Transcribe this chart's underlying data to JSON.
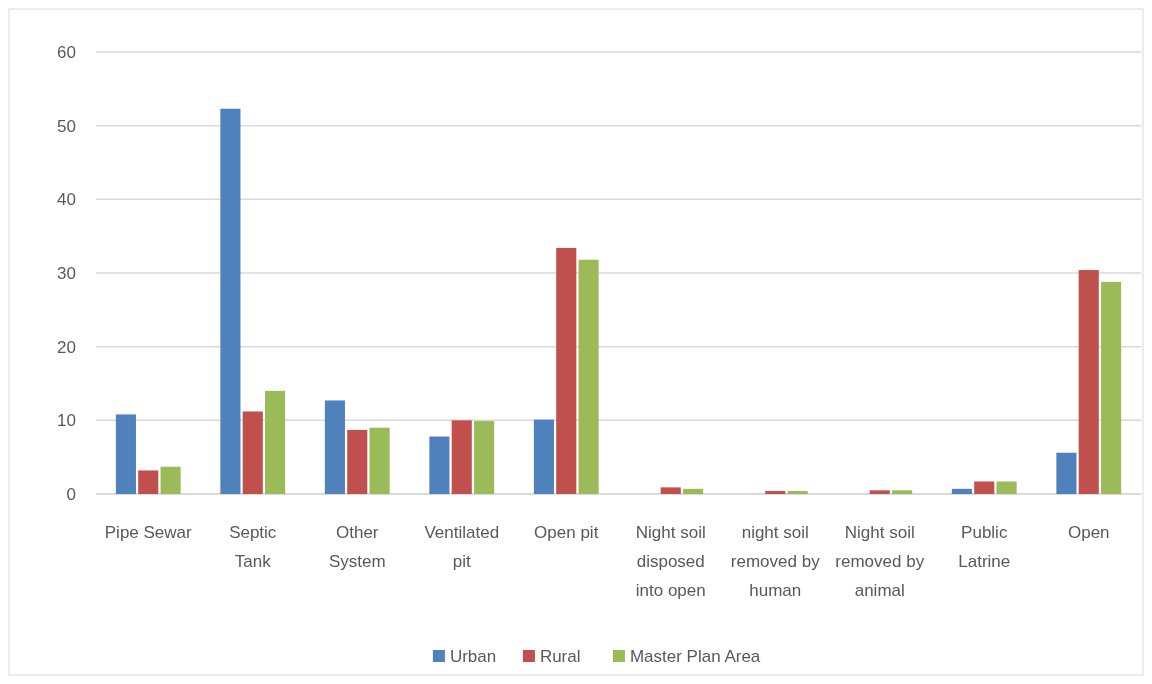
{
  "chart_data": {
    "type": "bar",
    "categories": [
      "Pipe Sewar",
      "Septic Tank",
      "Other System",
      "Ventilated pit",
      "Open pit",
      "Night soil disposed into open",
      "night soil removed by human",
      "Night soil removed by animal",
      "Public Latrine",
      "Open"
    ],
    "series": [
      {
        "name": "Urban",
        "color": "#4f81bd",
        "values": [
          10.8,
          52.3,
          12.7,
          7.8,
          10.1,
          0,
          0,
          0,
          0.7,
          5.6
        ]
      },
      {
        "name": "Rural",
        "color": "#c0504d",
        "values": [
          3.2,
          11.2,
          8.7,
          10.0,
          33.4,
          0.9,
          0.4,
          0.5,
          1.7,
          30.4
        ]
      },
      {
        "name": "Master Plan Area",
        "color": "#9bbb59",
        "values": [
          3.7,
          14.0,
          9.0,
          9.9,
          31.8,
          0.7,
          0.4,
          0.5,
          1.7,
          28.8
        ]
      }
    ],
    "ylim": [
      0,
      60
    ],
    "yticks": [
      0,
      10,
      20,
      30,
      40,
      50,
      60
    ],
    "grid": "y",
    "legend": "bottom"
  }
}
